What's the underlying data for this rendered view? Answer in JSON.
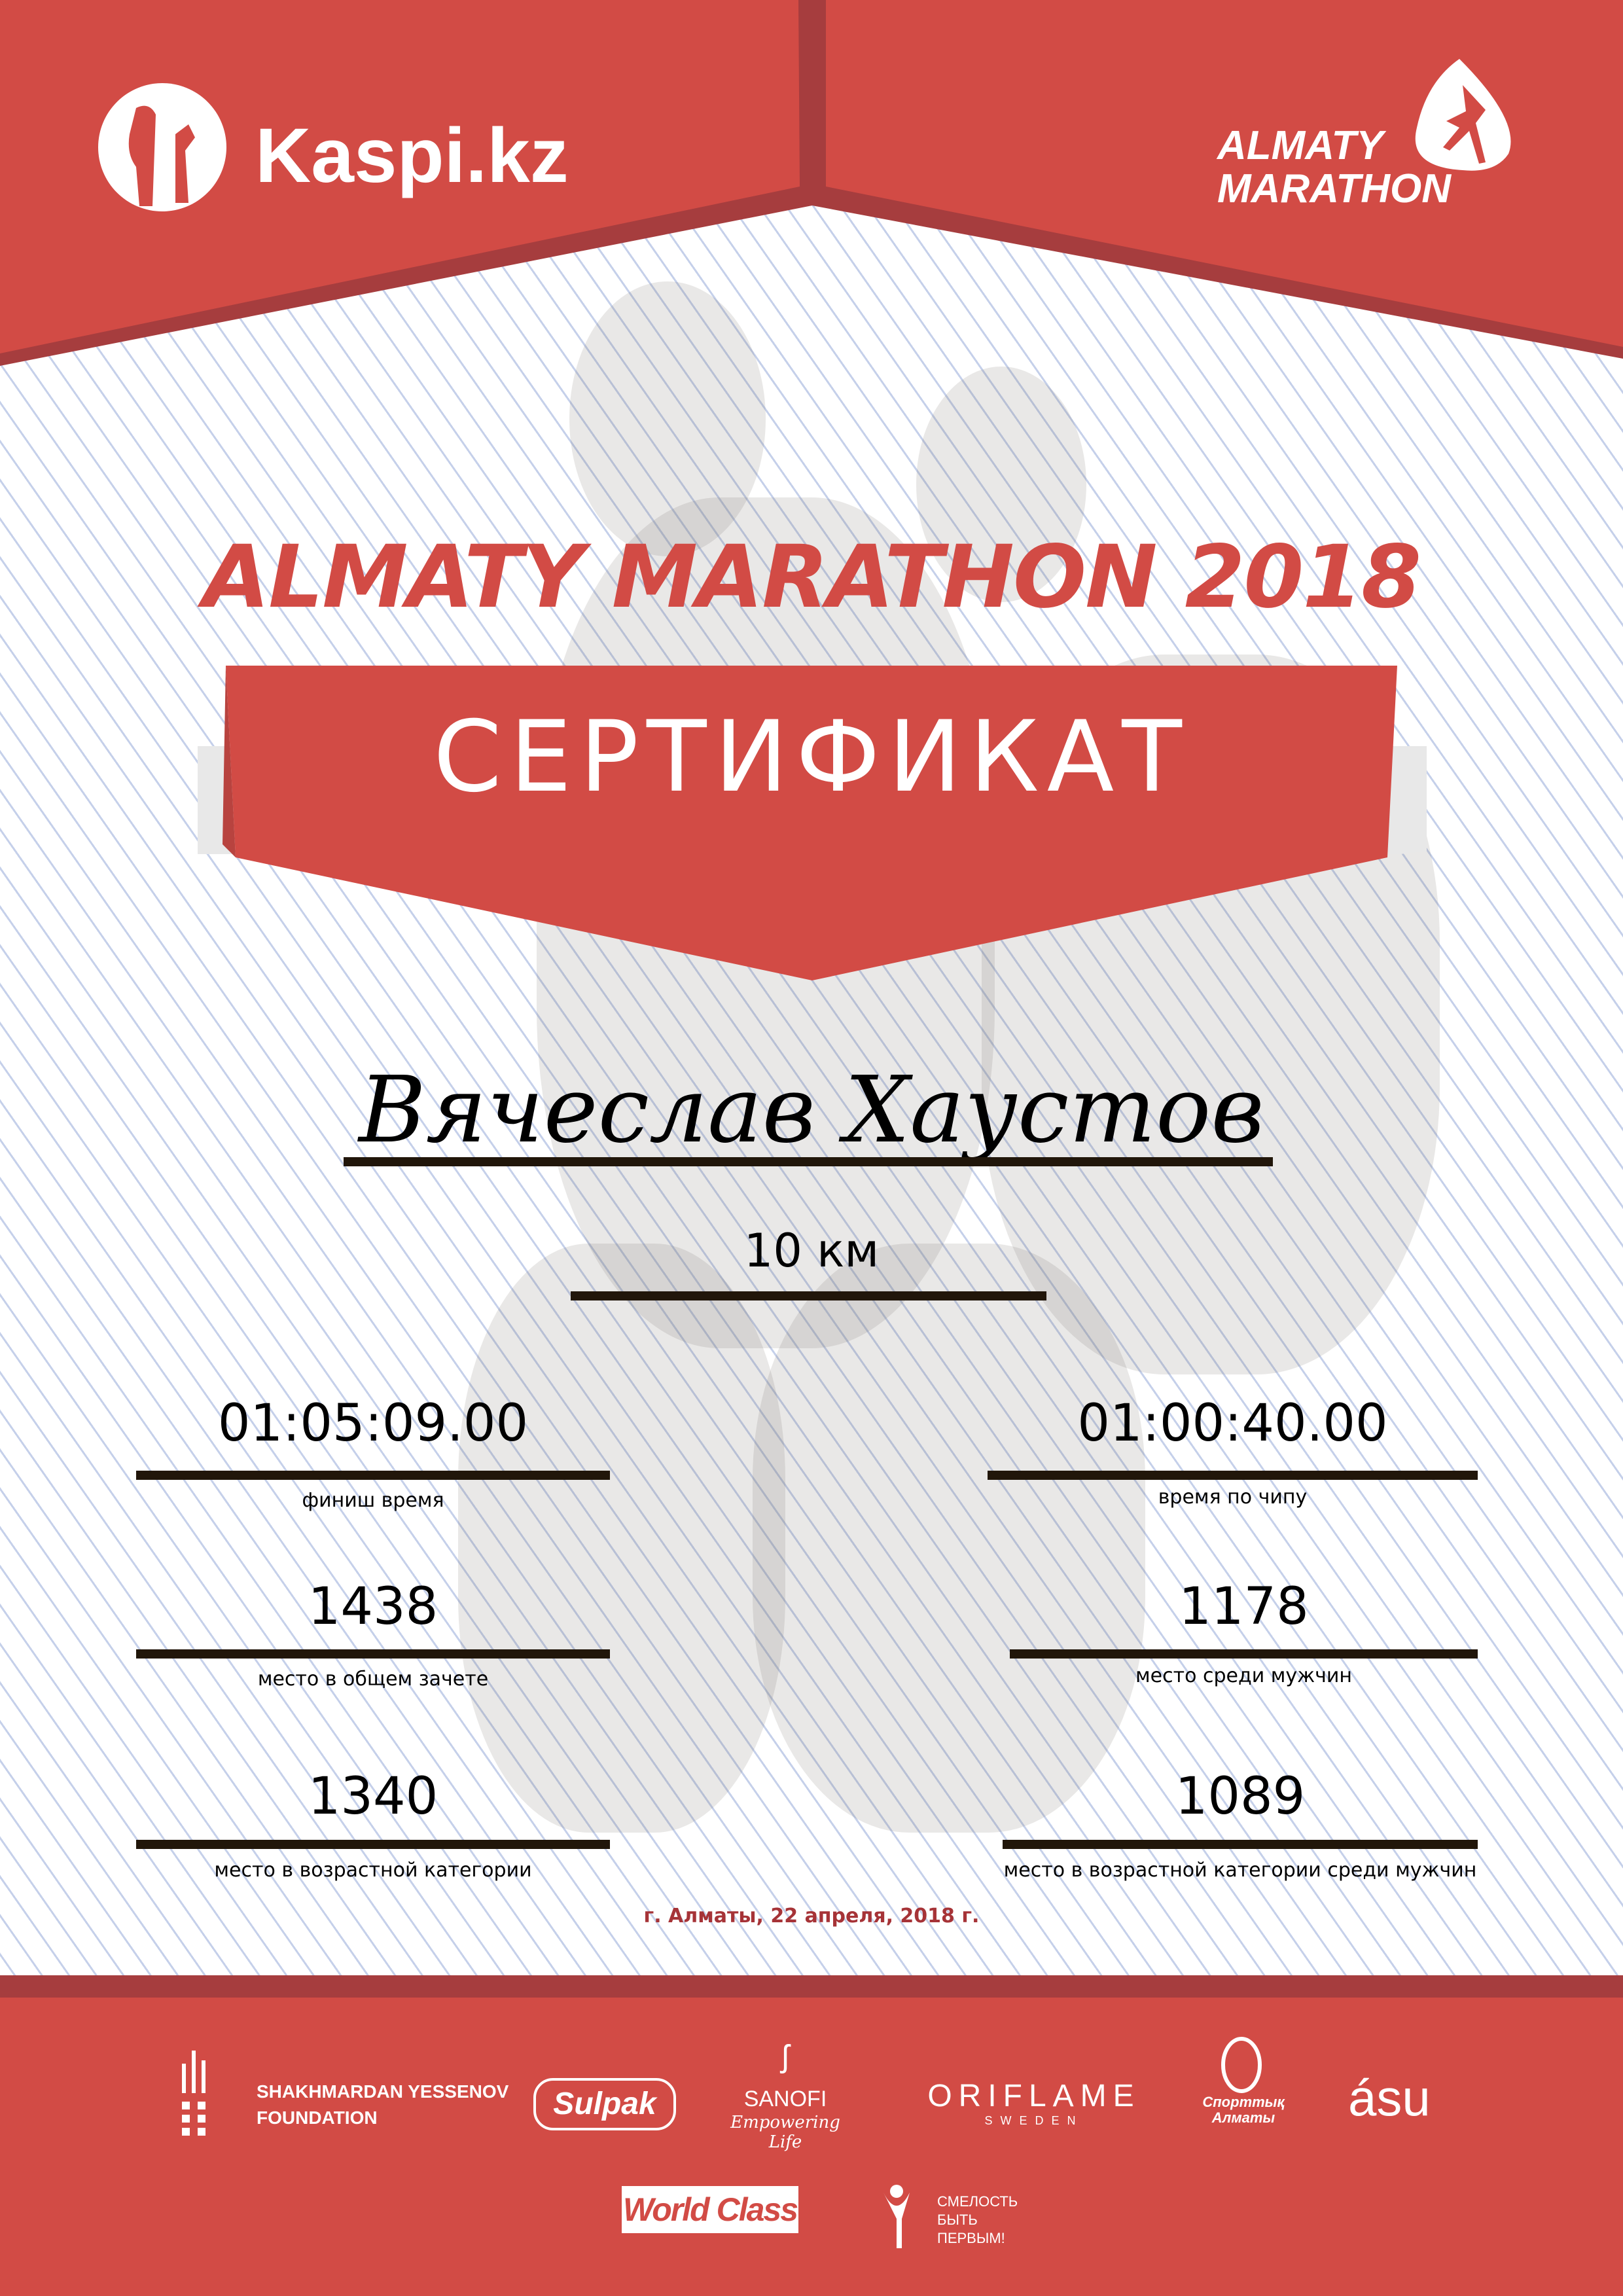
{
  "colors": {
    "brand_red": "#d24b45",
    "dark_red": "#a63d3e",
    "line": "#21160a",
    "date_red": "#a63337"
  },
  "header": {
    "left_logo": "Kaspi.kz",
    "right_logo_line1": "ALMATY",
    "right_logo_line2": "MARATHON"
  },
  "title": "ALMATY MARATHON 2018",
  "ribbon": "СЕРТИФИКАТ",
  "participant": {
    "name": "Вячеслав Хаустов",
    "distance": "10 км"
  },
  "results": [
    {
      "value": "01:05:09.00",
      "label": "финиш время"
    },
    {
      "value": "01:00:40.00",
      "label": "время по чипу"
    },
    {
      "value": "1438",
      "label": "место в общем зачете"
    },
    {
      "value": "1178",
      "label": "место среди мужчин"
    },
    {
      "value": "1340",
      "label": "место в возрастной категории"
    },
    {
      "value": "1089",
      "label": "место в возрастной категории среди мужчин"
    }
  ],
  "date": "г. Алматы, 22 апреля, 2018 г.",
  "sponsors": {
    "yessenov_1": "SHAKHMARDAN YESSENOV",
    "yessenov_2": "FOUNDATION",
    "sulpak": "Sulpak",
    "sanofi": "SANOFI",
    "sanofi_tag": "Empowering Life",
    "oriflame": "ORIFLAME",
    "oriflame_sub": "SWEDEN",
    "sport_almaty_1": "Спорттық",
    "sport_almaty_2": "Алматы",
    "asu": "ásu",
    "worldclass": "World Class",
    "fund_1": "СМЕЛОСТЬ",
    "fund_2": "БЫТЬ",
    "fund_3": "ПЕРВЫМ!"
  }
}
